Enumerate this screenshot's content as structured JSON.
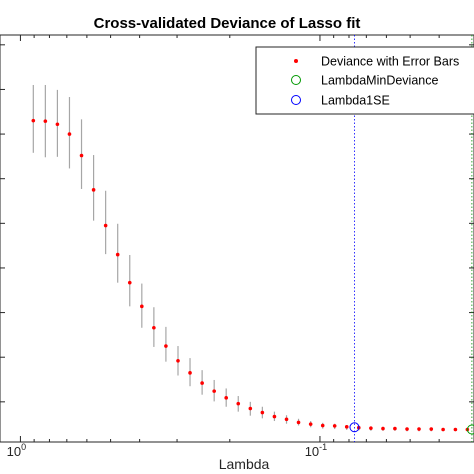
{
  "chart_data": {
    "type": "scatter",
    "title": "Cross-validated Deviance of Lasso fit",
    "xlabel": "Lambda",
    "ylabel": "",
    "x_scale": "log",
    "x_direction": "reversed",
    "x_ticks": [
      {
        "value": 1,
        "base": "10",
        "exp": "0"
      },
      {
        "value": 0.1,
        "base": "10",
        "exp": "-1"
      }
    ],
    "xlim": [
      1.17,
      0.0306
    ],
    "ylim": [
      0.1,
      9.22
    ],
    "grid": false,
    "legend_position": "top-right",
    "legend": [
      {
        "label": "Deviance with Error Bars",
        "marker": "red-dot"
      },
      {
        "label": "LambdaMinDeviance",
        "marker": "green-circle"
      },
      {
        "label": "Lambda1SE",
        "marker": "blue-circle"
      }
    ],
    "series": [
      {
        "name": "Deviance with Error Bars",
        "color": "#ff0000",
        "error_bar_color": "#a6a6a6",
        "x": [
          0.9057,
          0.8256,
          0.7525,
          0.6859,
          0.6252,
          0.5698,
          0.5194,
          0.4734,
          0.4315,
          0.3933,
          0.3585,
          0.3268,
          0.2978,
          0.2715,
          0.2474,
          0.2255,
          0.2056,
          0.1874,
          0.1708,
          0.1557,
          0.1419,
          0.1293,
          0.1179,
          0.1074,
          0.0979,
          0.0893,
          0.0814,
          0.0742,
          0.0676,
          0.0616,
          0.0562,
          0.0512,
          0.0467,
          0.0425,
          0.0388,
          0.0353,
          0.0322
        ],
        "y": [
          7.3,
          7.29,
          7.22,
          7.0,
          6.52,
          5.75,
          4.95,
          4.3,
          3.67,
          3.14,
          2.66,
          2.25,
          1.92,
          1.65,
          1.42,
          1.24,
          1.09,
          0.96,
          0.85,
          0.76,
          0.67,
          0.61,
          0.54,
          0.5,
          0.47,
          0.46,
          0.44,
          0.42,
          0.41,
          0.4,
          0.4,
          0.39,
          0.39,
          0.39,
          0.38,
          0.38,
          0.38
        ],
        "err_low": [
          6.58,
          6.48,
          6.49,
          6.23,
          5.77,
          5.06,
          4.31,
          3.67,
          3.14,
          2.66,
          2.23,
          1.9,
          1.59,
          1.35,
          1.16,
          1.01,
          0.89,
          0.78,
          0.69,
          0.63,
          0.57,
          0.51,
          0.47,
          0.43,
          0.4,
          0.39,
          0.37,
          0.36,
          0.35,
          0.35,
          0.35,
          0.34,
          0.34,
          0.34,
          0.34,
          0.34,
          0.34
        ],
        "err_high": [
          8.1,
          8.1,
          7.99,
          7.83,
          7.33,
          6.53,
          5.73,
          4.99,
          4.29,
          3.65,
          3.12,
          2.68,
          2.25,
          1.98,
          1.71,
          1.49,
          1.3,
          1.13,
          1.0,
          0.89,
          0.78,
          0.7,
          0.62,
          0.57,
          0.53,
          0.51,
          0.48,
          0.46,
          0.45,
          0.44,
          0.43,
          0.42,
          0.42,
          0.42,
          0.41,
          0.41,
          0.41
        ]
      }
    ],
    "lambda_1se": {
      "name": "Lambda1SE",
      "x": 0.0767,
      "y": 0.43,
      "color": "#0000ff"
    },
    "lambda_min_deviance": {
      "name": "LambdaMinDeviance",
      "x": 0.0311,
      "y": 0.38,
      "color": "#009900"
    }
  }
}
